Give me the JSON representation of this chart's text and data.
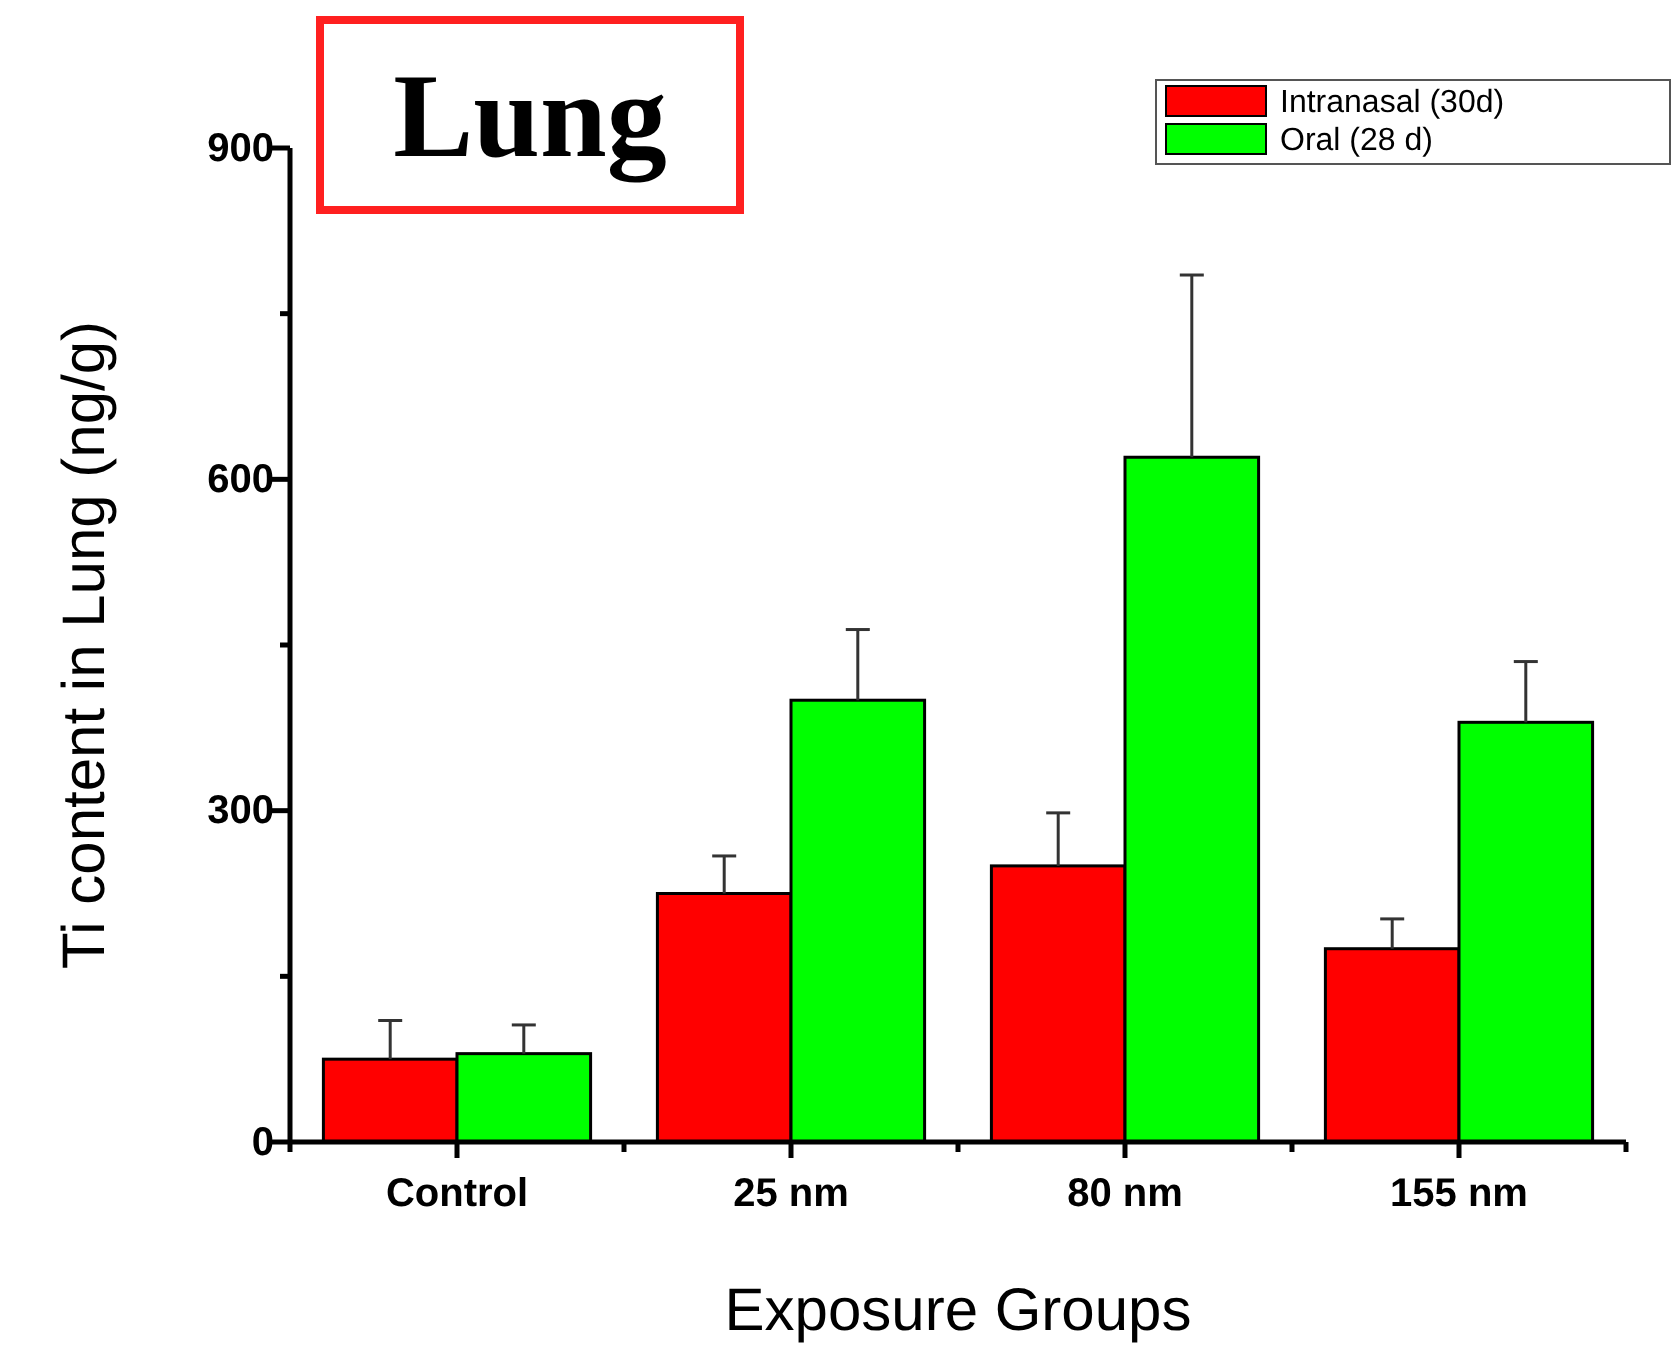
{
  "chart_data": {
    "type": "bar",
    "title": "Lung",
    "xlabel": "Exposure Groups",
    "ylabel": "Ti content in Lung (ng/g)",
    "categories": [
      "Control",
      "25 nm",
      "80 nm",
      "155 nm"
    ],
    "series": [
      {
        "name": "Intranasal (30d)",
        "color": "#ff0000",
        "values": [
          75,
          225,
          250,
          175
        ],
        "errors": [
          35,
          34,
          48,
          27
        ]
      },
      {
        "name": "Oral (28 d)",
        "color": "#00ff00",
        "values": [
          80,
          400,
          620,
          380
        ],
        "errors": [
          26,
          64,
          165,
          55
        ]
      }
    ],
    "ylim": [
      0,
      900
    ],
    "yticks": [
      0,
      {
        "value": 150,
        "label": null
      },
      300,
      {
        "value": 450,
        "label": null
      },
      600,
      {
        "value": 750,
        "label": null
      },
      900
    ],
    "grid": false,
    "legend": "top right"
  }
}
